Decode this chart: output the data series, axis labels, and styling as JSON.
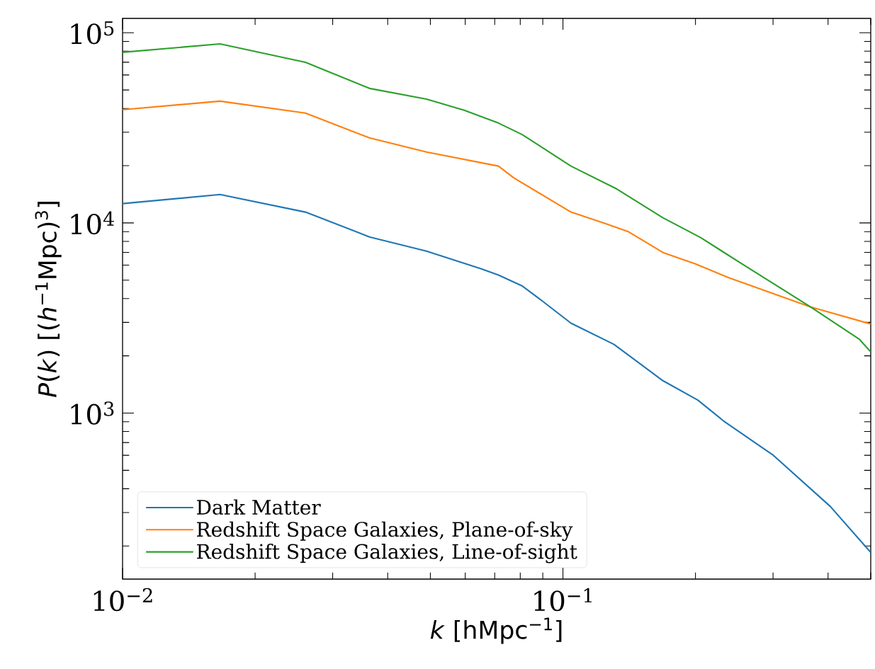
{
  "chart_data": {
    "type": "line",
    "xlabel": "*k* [hMpc$^{−1}$]",
    "ylabel": "*P*(*k*) [(*h*$^{−1}$Mpc)$^{3}$]",
    "log": "xy",
    "legend": "bottom left",
    "xlim": [
      0.01,
      0.5
    ],
    "ylim": [
      134,
      119000
    ],
    "xticks": [
      {
        "value": 0.01,
        "label": "10$^{−2}$"
      },
      {
        "value": 0.1,
        "label": "10$^{−1}$"
      }
    ],
    "yticks": [
      {
        "value": 1000,
        "label": "10$^{3}$"
      },
      {
        "value": 10000,
        "label": "10$^{4}$"
      },
      {
        "value": 100000,
        "label": "10$^{5}$"
      }
    ],
    "series": [
      {
        "name": "Dark Matter",
        "color": "#1f77b4",
        "x": [
          0.01,
          0.01665,
          0.02602,
          0.03638,
          0.049,
          0.06526,
          0.07138,
          0.0807,
          0.08959,
          0.1043,
          0.1305,
          0.1687,
          0.2024,
          0.2315,
          0.2993,
          0.4047,
          0.5
        ],
        "values": [
          12630,
          14100,
          11400,
          8440,
          7110,
          5740,
          5320,
          4670,
          3900,
          2970,
          2300,
          1480,
          1170,
          910,
          604,
          323,
          185
        ]
      },
      {
        "name": "Redshift Space Galaxies, Plane-of-sky",
        "color": "#ff7f0e",
        "x": [
          0.01,
          0.01665,
          0.02602,
          0.03638,
          0.049,
          0.07138,
          0.07719,
          0.1043,
          0.1248,
          0.1411,
          0.1687,
          0.1994,
          0.2385,
          0.3647,
          0.5
        ],
        "values": [
          39400,
          43700,
          37800,
          28000,
          23600,
          19900,
          17300,
          11400,
          9930,
          8970,
          6990,
          6100,
          5140,
          3620,
          2940
        ]
      },
      {
        "name": "Redshift Space Galaxies, Line-of-sight",
        "color": "#2ca02c",
        "x": [
          0.01,
          0.01665,
          0.02602,
          0.03638,
          0.049,
          0.0597,
          0.07138,
          0.0807,
          0.1043,
          0.1324,
          0.1687,
          0.2055,
          0.2579,
          0.3647,
          0.4715,
          0.5
        ],
        "values": [
          78900,
          87400,
          69900,
          50990,
          44800,
          39100,
          33500,
          29200,
          19900,
          15100,
          10640,
          8370,
          5990,
          3620,
          2440,
          2100
        ]
      }
    ]
  }
}
